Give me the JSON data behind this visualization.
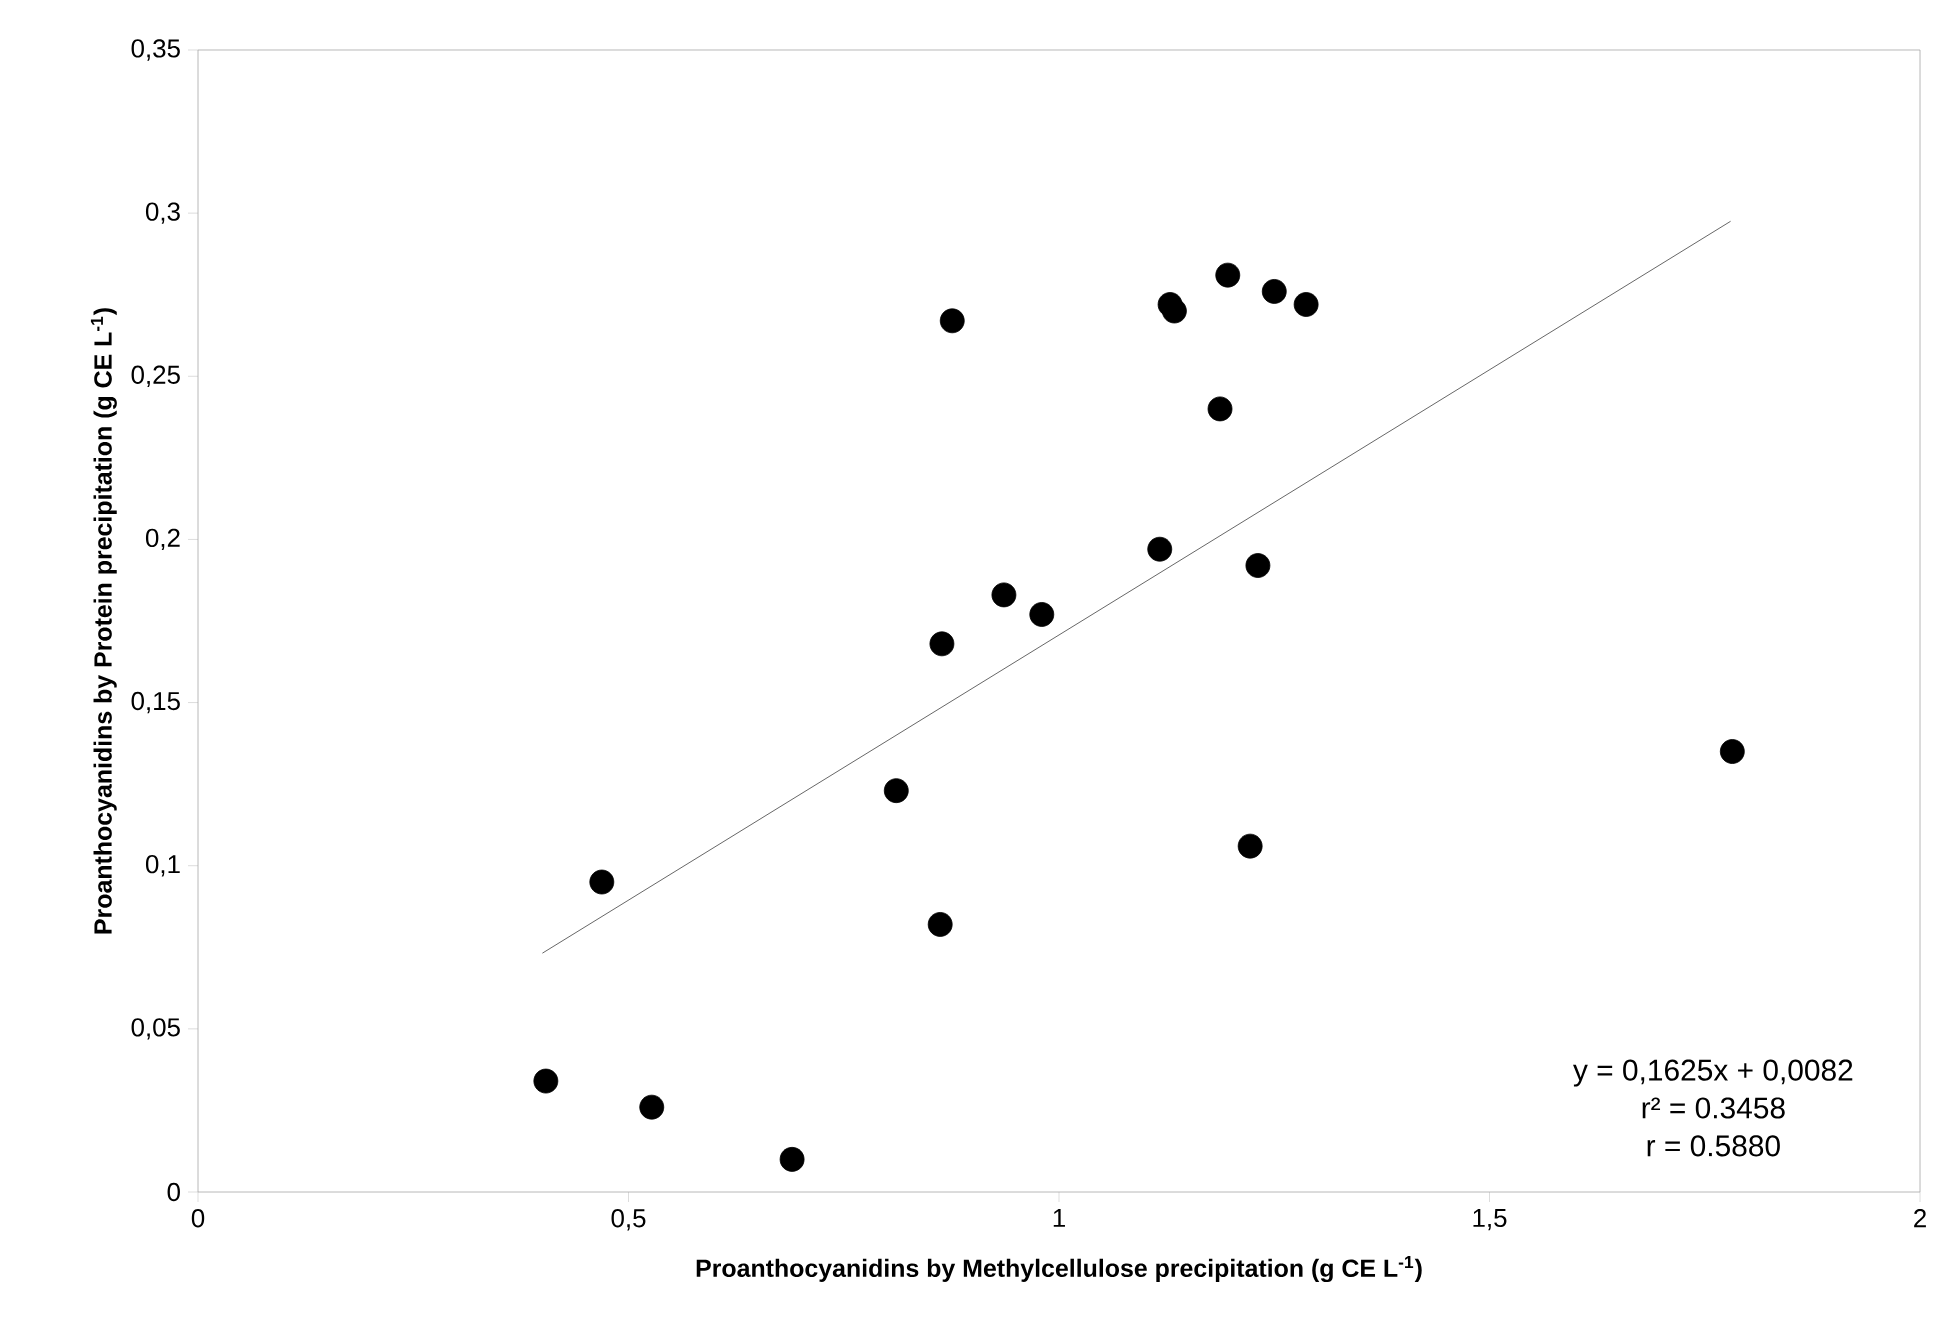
{
  "chart_data": {
    "type": "scatter",
    "xlabel": "Proanthocyanidins by Methylcellulose precipitation (g CE L$^{-1}$)",
    "ylabel": "Proanthocyanidins by Protein precipitation (g CE L$^{-1}$)",
    "xlim": [
      0,
      2
    ],
    "ylim": [
      0,
      0.35
    ],
    "xticks": [
      0,
      {
        "value": 0.5,
        "label": "0,5"
      },
      1,
      {
        "value": 1.5,
        "label": "1,5"
      },
      2
    ],
    "yticks": [
      0,
      {
        "value": 0.05,
        "label": "0,05"
      },
      {
        "value": 0.1,
        "label": "0,1"
      },
      {
        "value": 0.15,
        "label": "0,15"
      },
      {
        "value": 0.2,
        "label": "0,2"
      },
      {
        "value": 0.25,
        "label": "0,25"
      },
      {
        "value": 0.3,
        "label": "0,3"
      },
      {
        "value": 0.35,
        "label": "0,35"
      }
    ],
    "grid": false,
    "series": [
      {
        "color": "#000000",
        "marker": "circle",
        "x": [
          0.404,
          0.469,
          0.527,
          0.69,
          0.811,
          0.862,
          0.864,
          0.876,
          0.936,
          0.98,
          1.117,
          1.129,
          1.134,
          1.196,
          1.187,
          1.222,
          1.231,
          1.25,
          1.287,
          1.782
        ],
        "values": [
          0.034,
          0.095,
          0.026,
          0.01,
          0.123,
          0.082,
          0.168,
          0.267,
          0.183,
          0.177,
          0.197,
          0.272,
          0.27,
          0.281,
          0.24,
          0.106,
          0.192,
          0.276,
          0.272,
          0.135
        ]
      },
      {
        "type": "line",
        "color": "#404040",
        "marker": "none",
        "line_style": "solid",
        "x": [
          0.4,
          1.78
        ],
        "values": [
          0.0732,
          0.2975
        ]
      }
    ],
    "annotations": [
      "y = 0,1625x + 0,0082",
      "r² = 0.3458",
      "r = 0.5880"
    ]
  }
}
